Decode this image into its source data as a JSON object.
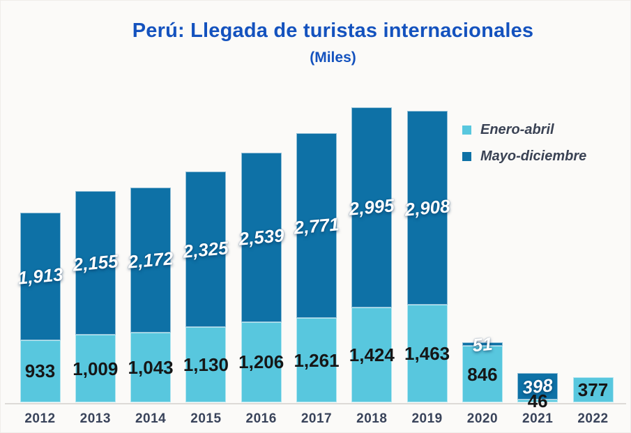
{
  "chart_data": {
    "type": "bar",
    "stacked": true,
    "title": "Perú: Llegada de turistas internacionales",
    "subtitle": "(Miles)",
    "categories": [
      "2012",
      "2013",
      "2014",
      "2015",
      "2016",
      "2017",
      "2018",
      "2019",
      "2020",
      "2021",
      "2022"
    ],
    "series": [
      {
        "name": "Enero-abril",
        "color": "#58C7DE",
        "values": [
          933,
          1009,
          1043,
          1130,
          1206,
          1261,
          1424,
          1463,
          846,
          46,
          377
        ]
      },
      {
        "name": "Mayo-diciembre",
        "color": "#0E71A6",
        "values": [
          1913,
          2155,
          2172,
          2325,
          2539,
          2771,
          2995,
          2908,
          51,
          398,
          null
        ]
      }
    ],
    "legend_position": "right",
    "grid": false,
    "ylim": [
      0,
      4419
    ],
    "value_labels": true,
    "value_label_format": "thousands-comma"
  },
  "colors": {
    "title": "#1452BE",
    "bar_light": "#58C7DE",
    "bar_dark": "#0E71A6",
    "legend_text": "#3A4254",
    "axis_label": "#39435A",
    "axis_line": "#DDDAD7",
    "background": "#FBFAF8",
    "frame_border": "#EFEDEA",
    "value_label_light_series": "#161616",
    "value_label_dark_series": "#FFFFFF"
  }
}
